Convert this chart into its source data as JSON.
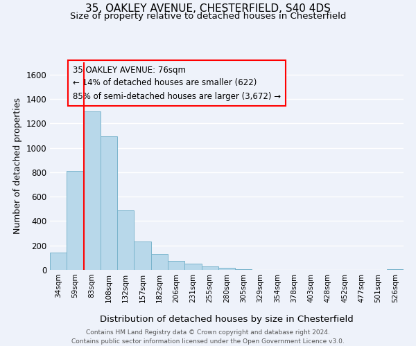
{
  "title": "35, OAKLEY AVENUE, CHESTERFIELD, S40 4DS",
  "subtitle": "Size of property relative to detached houses in Chesterfield",
  "xlabel": "Distribution of detached houses by size in Chesterfield",
  "ylabel": "Number of detached properties",
  "bar_labels": [
    "34sqm",
    "59sqm",
    "83sqm",
    "108sqm",
    "132sqm",
    "157sqm",
    "182sqm",
    "206sqm",
    "231sqm",
    "255sqm",
    "280sqm",
    "305sqm",
    "329sqm",
    "354sqm",
    "378sqm",
    "403sqm",
    "428sqm",
    "452sqm",
    "477sqm",
    "501sqm",
    "526sqm"
  ],
  "bar_heights": [
    140,
    810,
    1295,
    1095,
    490,
    235,
    130,
    75,
    50,
    28,
    18,
    5,
    0,
    0,
    0,
    0,
    0,
    0,
    0,
    0,
    5
  ],
  "bar_color": "#b8d8ea",
  "bar_edge_color": "#7ab4cc",
  "ylim": [
    0,
    1700
  ],
  "yticks": [
    0,
    200,
    400,
    600,
    800,
    1000,
    1200,
    1400,
    1600
  ],
  "property_line_x": 2.0,
  "annotation_title": "35 OAKLEY AVENUE: 76sqm",
  "annotation_line1": "← 14% of detached houses are smaller (622)",
  "annotation_line2": "85% of semi-detached houses are larger (3,672) →",
  "footer_line1": "Contains HM Land Registry data © Crown copyright and database right 2024.",
  "footer_line2": "Contains public sector information licensed under the Open Government Licence v3.0.",
  "title_fontsize": 11,
  "subtitle_fontsize": 9.5,
  "xlabel_fontsize": 9.5,
  "ylabel_fontsize": 9,
  "annotation_fontsize": 8.5,
  "footer_fontsize": 6.5,
  "background_color": "#eef2fa"
}
